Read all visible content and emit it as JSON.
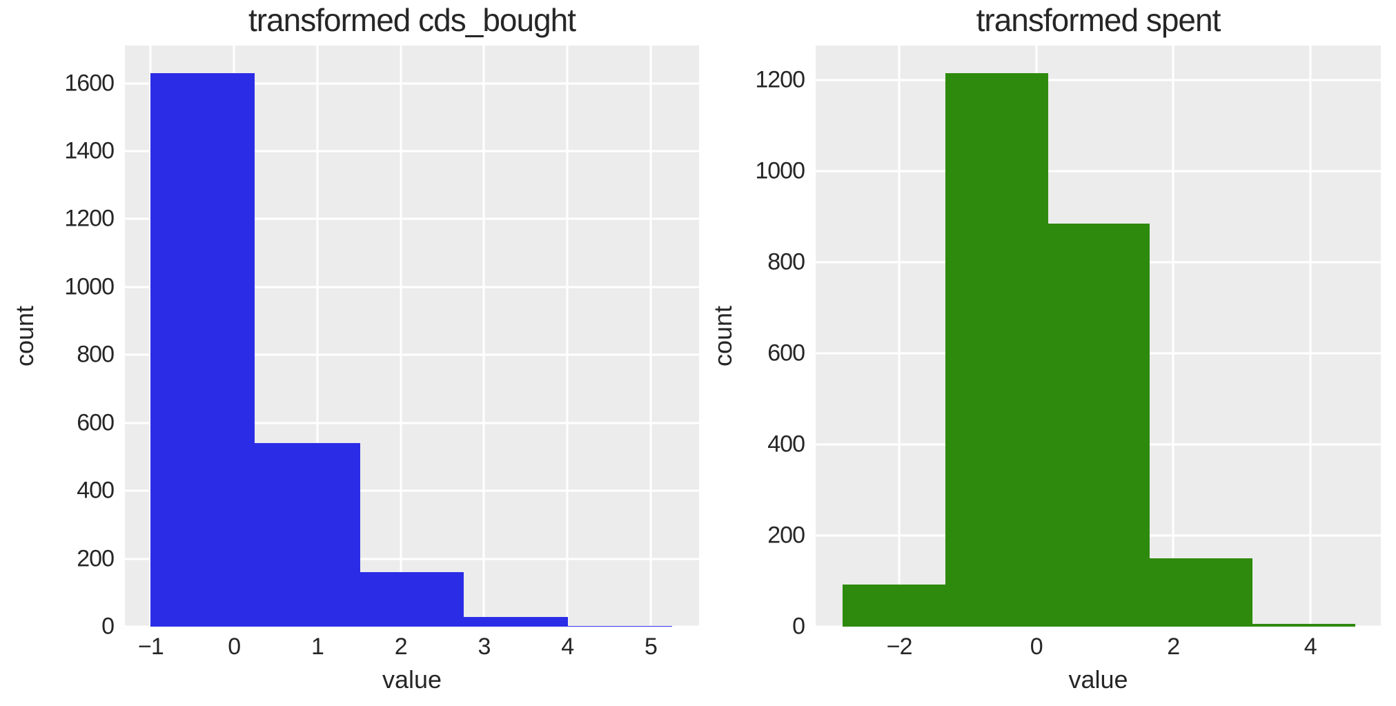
{
  "figure": {
    "background": "#ffffff"
  },
  "colors": {
    "plot_background": "#ececec",
    "gridline": "#ffffff",
    "text": "#262626",
    "blue_bar": "#2b2de6",
    "green_bar": "#2e8a0c"
  },
  "chart_data": [
    {
      "type": "bar",
      "subtype": "histogram",
      "title": "transformed cds_bought",
      "xlabel": "value",
      "ylabel": "count",
      "bar_color": "#2b2de6",
      "bin_edges": [
        -1.0,
        0.25,
        1.51,
        2.76,
        4.01,
        5.26
      ],
      "counts": [
        1630,
        540,
        160,
        28,
        3
      ],
      "xticks": [
        -1,
        0,
        1,
        2,
        3,
        4,
        5
      ],
      "yticks": [
        0,
        200,
        400,
        600,
        800,
        1000,
        1200,
        1400,
        1600
      ],
      "xlim": [
        -1.31,
        5.58
      ],
      "ylim": [
        0,
        1711
      ],
      "grid": true,
      "legend": false
    },
    {
      "type": "bar",
      "subtype": "histogram",
      "title": "transformed spent",
      "xlabel": "value",
      "ylabel": "count",
      "bar_color": "#2e8a0c",
      "bin_edges": [
        -2.83,
        -1.33,
        0.17,
        1.66,
        3.16,
        4.66
      ],
      "counts": [
        92,
        1215,
        885,
        150,
        6
      ],
      "xticks": [
        -2,
        0,
        2,
        4
      ],
      "yticks": [
        0,
        200,
        400,
        600,
        800,
        1000,
        1200
      ],
      "xlim": [
        -3.22,
        5.03
      ],
      "ylim": [
        0,
        1276
      ],
      "grid": true,
      "legend": false
    }
  ]
}
